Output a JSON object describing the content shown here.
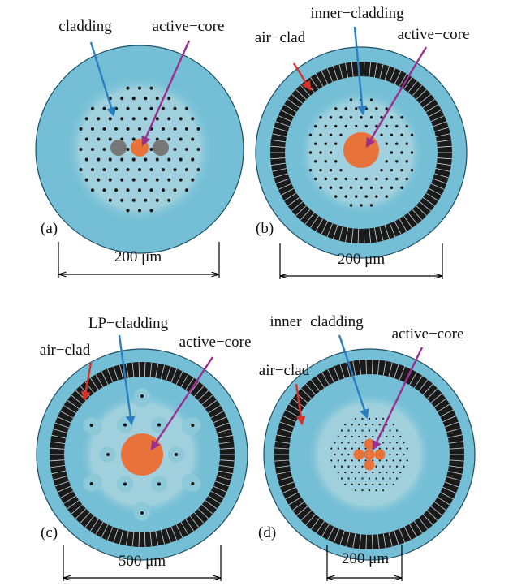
{
  "panels": [
    {
      "letter": "(a)",
      "labels": [
        "cladding",
        "active−core"
      ],
      "scale": "200 μm"
    },
    {
      "letter": "(b)",
      "labels": [
        "air−clad",
        "inner−cladding",
        "active−core"
      ],
      "scale": "200 μm"
    },
    {
      "letter": "(c)",
      "labels": [
        "air−clad",
        "LP−cladding",
        "active−core"
      ],
      "scale": "500 μm"
    },
    {
      "letter": "(d)",
      "labels": [
        "air−clad",
        "inner−cladding",
        "active−core"
      ],
      "scale": "200 μm"
    }
  ]
}
